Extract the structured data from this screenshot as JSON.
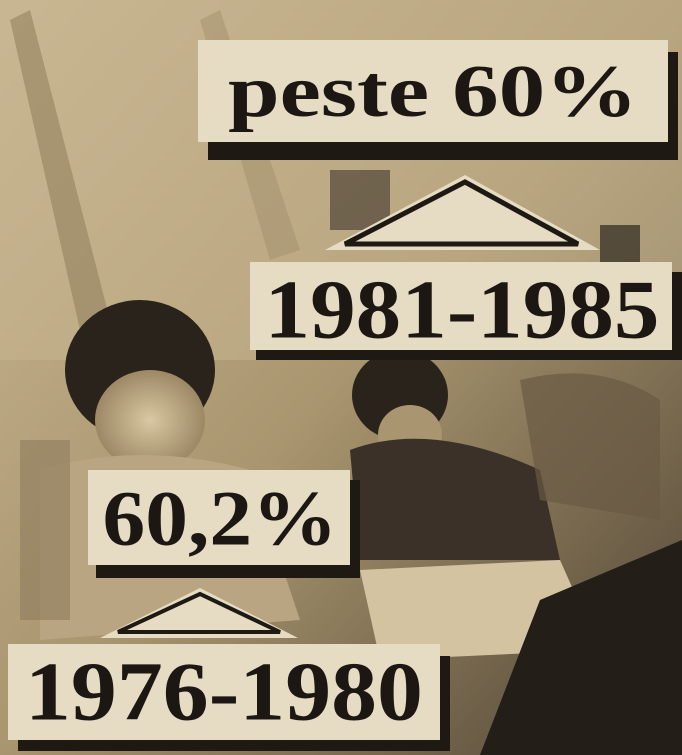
{
  "labels": [
    {
      "text": "peste 60%"
    },
    {
      "text": "1981-1985"
    },
    {
      "text": "60,2%"
    },
    {
      "text": "1976-1980"
    }
  ]
}
